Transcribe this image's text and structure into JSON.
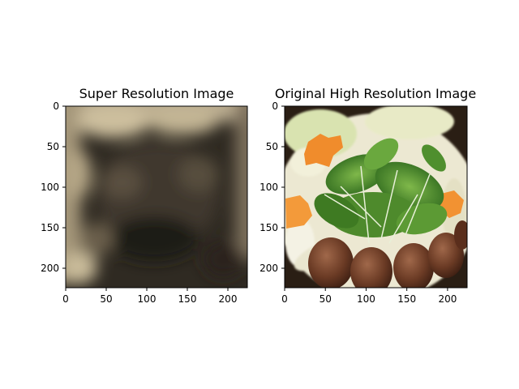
{
  "figure": {
    "background": "#ffffff",
    "panels": [
      {
        "title": "Super Resolution Image",
        "image_description": "blurry reconstructed image"
      },
      {
        "title": "Original High Resolution Image",
        "image_description": "photo of hot pot ingredients"
      }
    ]
  },
  "chart_data": [
    {
      "type": "image",
      "title": "Super Resolution Image",
      "xlim": [
        0,
        224
      ],
      "ylim": [
        224,
        0
      ],
      "x_ticks": [
        0,
        50,
        100,
        150,
        200
      ],
      "y_ticks": [
        0,
        50,
        100,
        150,
        200
      ],
      "x_tick_labels": [
        "0",
        "50",
        "100",
        "150",
        "200"
      ],
      "y_tick_labels": [
        "0",
        "50",
        "100",
        "150",
        "200"
      ],
      "grid": false,
      "xlabel": "",
      "ylabel": ""
    },
    {
      "type": "image",
      "title": "Original High Resolution Image",
      "xlim": [
        0,
        224
      ],
      "ylim": [
        224,
        0
      ],
      "x_ticks": [
        0,
        50,
        100,
        150,
        200
      ],
      "y_ticks": [
        0,
        50,
        100,
        150,
        200
      ],
      "x_tick_labels": [
        "0",
        "50",
        "100",
        "150",
        "200"
      ],
      "y_tick_labels": [
        "0",
        "50",
        "100",
        "150",
        "200"
      ],
      "grid": false,
      "xlabel": "",
      "ylabel": ""
    }
  ]
}
